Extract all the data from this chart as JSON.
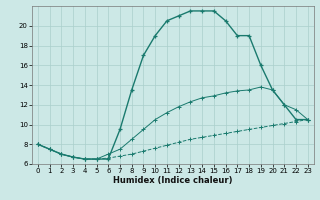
{
  "xlabel": "Humidex (Indice chaleur)",
  "bg_color": "#cce8e6",
  "grid_color": "#aacfcc",
  "line_color": "#1a7a6e",
  "ylim": [
    6,
    22
  ],
  "xlim": [
    -0.5,
    23.5
  ],
  "yticks": [
    6,
    8,
    10,
    12,
    14,
    16,
    18,
    20
  ],
  "xticks": [
    0,
    1,
    2,
    3,
    4,
    5,
    6,
    7,
    8,
    9,
    10,
    11,
    12,
    13,
    14,
    15,
    16,
    17,
    18,
    19,
    20,
    21,
    22,
    23
  ],
  "line1_x": [
    0,
    1,
    2,
    3,
    4,
    5,
    6,
    7,
    8,
    9,
    10,
    11,
    12,
    13,
    14,
    15,
    16,
    17,
    18,
    19,
    20,
    21,
    22,
    23
  ],
  "line1_y": [
    8.0,
    7.5,
    7.0,
    6.7,
    6.5,
    6.5,
    6.5,
    9.5,
    13.5,
    17.0,
    19.0,
    20.5,
    21.0,
    21.5,
    21.5,
    21.5,
    20.5,
    19.0,
    19.0,
    16.0,
    13.5,
    12.0,
    10.5,
    10.5
  ],
  "line2_x": [
    0,
    1,
    2,
    3,
    4,
    5,
    6,
    7,
    8,
    9,
    10,
    11,
    12,
    13,
    14,
    15,
    16,
    17,
    18,
    19,
    20,
    21,
    22,
    23
  ],
  "line2_y": [
    8.0,
    7.5,
    7.0,
    6.7,
    6.5,
    6.5,
    6.6,
    6.8,
    7.0,
    7.3,
    7.6,
    7.9,
    8.2,
    8.5,
    8.7,
    8.9,
    9.1,
    9.3,
    9.5,
    9.7,
    9.9,
    10.1,
    10.3,
    10.5
  ],
  "line3_x": [
    0,
    1,
    2,
    3,
    4,
    5,
    6,
    7,
    8,
    9,
    10,
    11,
    12,
    13,
    14,
    15,
    16,
    17,
    18,
    19,
    20,
    21,
    22,
    23
  ],
  "line3_y": [
    8.0,
    7.5,
    7.0,
    6.7,
    6.5,
    6.5,
    7.0,
    7.5,
    8.5,
    9.5,
    10.5,
    11.2,
    11.8,
    12.3,
    12.7,
    12.9,
    13.2,
    13.4,
    13.5,
    13.8,
    13.5,
    12.0,
    11.5,
    10.5
  ],
  "line2_dashed": true
}
